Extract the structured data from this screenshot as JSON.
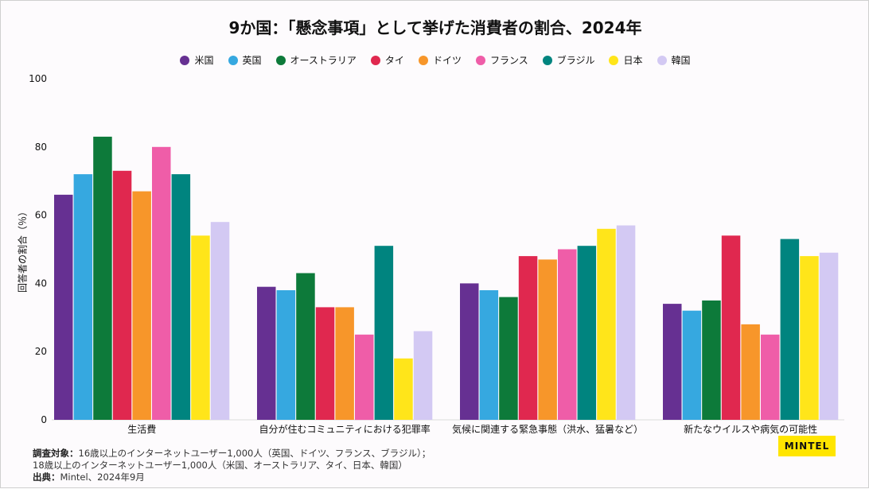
{
  "chart_data": {
    "type": "bar",
    "title": "9か国：「懸念事項」として挙げた消費者の割合、2024年",
    "ylabel": "回答者の割合（％）",
    "ylim": [
      0,
      100
    ],
    "yticks": [
      0,
      20,
      40,
      60,
      80,
      100
    ],
    "grid": false,
    "legend_position": "top",
    "categories": [
      "生活費",
      "自分が住むコミュニティにおける犯罪率",
      "気候に関連する緊急事態（洪水、猛暑など）",
      "新たなウイルスや病気の可能性"
    ],
    "series": [
      {
        "name": "米国",
        "color": "#663092",
        "values": [
          66,
          39,
          40,
          34
        ]
      },
      {
        "name": "英国",
        "color": "#36a8e0",
        "values": [
          72,
          38,
          38,
          32
        ]
      },
      {
        "name": "オーストラリア",
        "color": "#0d7a3a",
        "values": [
          83,
          43,
          36,
          35
        ]
      },
      {
        "name": "タイ",
        "color": "#e0284f",
        "values": [
          73,
          33,
          48,
          54
        ]
      },
      {
        "name": "ドイツ",
        "color": "#f7962a",
        "values": [
          67,
          33,
          47,
          28
        ]
      },
      {
        "name": "フランス",
        "color": "#ef5da8",
        "values": [
          80,
          25,
          50,
          25
        ]
      },
      {
        "name": "ブラジル",
        "color": "#00847f",
        "values": [
          72,
          51,
          51,
          53
        ]
      },
      {
        "name": "日本",
        "color": "#ffe51a",
        "values": [
          54,
          18,
          56,
          48
        ]
      },
      {
        "name": "韓国",
        "color": "#d3c9f3",
        "values": [
          58,
          26,
          57,
          49
        ]
      }
    ]
  },
  "footnote": {
    "label1": "調査対象：",
    "line1": "16歳以上のインターネットユーザー1,000人（英国、ドイツ、フランス、ブラジル）；",
    "line2": "18歳以上のインターネットユーザー1,000人（米国、オーストラリア、タイ、日本、韓国）",
    "label3": "出典：",
    "line3": "Mintel、2024年9月"
  },
  "logo": {
    "text": "MINTEL"
  }
}
